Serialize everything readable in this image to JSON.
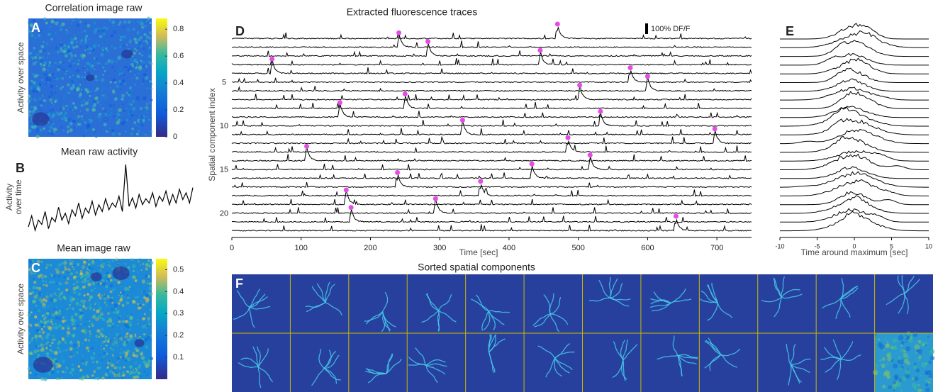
{
  "chart_data": [
    {
      "type": "heatmap",
      "panel": "A",
      "title": "Correlation image raw",
      "ylabel": "Activity over space",
      "clim": [
        0,
        0.88
      ],
      "colorbar_ticks": [
        0,
        0.2,
        0.4,
        0.6,
        0.8
      ]
    },
    {
      "type": "line",
      "panel": "B",
      "title": "Mean raw activity",
      "ylabel": [
        "Activity",
        "over time"
      ],
      "color": "#000000",
      "values": [
        0.22,
        0.35,
        0.18,
        0.3,
        0.25,
        0.4,
        0.2,
        0.33,
        0.28,
        0.45,
        0.3,
        0.38,
        0.26,
        0.42,
        0.35,
        0.5,
        0.32,
        0.44,
        0.38,
        0.52,
        0.36,
        0.48,
        0.4,
        0.55,
        0.42,
        0.5,
        0.45,
        0.58,
        0.4,
        0.95,
        0.46,
        0.56,
        0.44,
        0.6,
        0.48,
        0.55,
        0.5,
        0.62,
        0.46,
        0.58,
        0.52,
        0.64,
        0.48,
        0.6,
        0.5,
        0.66,
        0.54,
        0.62,
        0.5,
        0.68
      ]
    },
    {
      "type": "heatmap",
      "panel": "C",
      "title": "Mean image raw",
      "ylabel": "Activity over space",
      "clim": [
        0,
        0.55
      ],
      "colorbar_ticks": [
        0.1,
        0.2,
        0.3,
        0.4,
        0.5
      ]
    },
    {
      "type": "traces",
      "panel": "D",
      "title": "Extracted fluorescence traces",
      "xlabel": "Time [sec]",
      "ylabel": "Spatial component index",
      "xlim": [
        0,
        750
      ],
      "xticks": [
        0,
        100,
        200,
        300,
        400,
        500,
        600,
        700
      ],
      "ylim": [
        0,
        22
      ],
      "yticks": [
        5,
        10,
        15,
        20
      ],
      "scale_bar_label": "100% DF/F",
      "color": "#000000",
      "marker_color": "#e64be6",
      "peak_times": [
        470,
        241,
        283,
        445,
        58,
        575,
        600,
        502,
        250,
        156,
        532,
        333,
        697,
        485,
        108,
        517,
        433,
        239,
        359,
        165,
        294,
        172,
        641
      ]
    },
    {
      "type": "aligned-traces",
      "panel": "E",
      "xlabel": "Time around maximum [sec]",
      "xlim": [
        -10,
        10
      ],
      "xticks": [
        -10,
        -5,
        0,
        5,
        10
      ],
      "color": "#000000"
    },
    {
      "type": "image-grid",
      "panel": "F",
      "title": "Sorted spatial components",
      "rows": 2,
      "cols": 12,
      "grid_color": "#c9b800"
    }
  ]
}
